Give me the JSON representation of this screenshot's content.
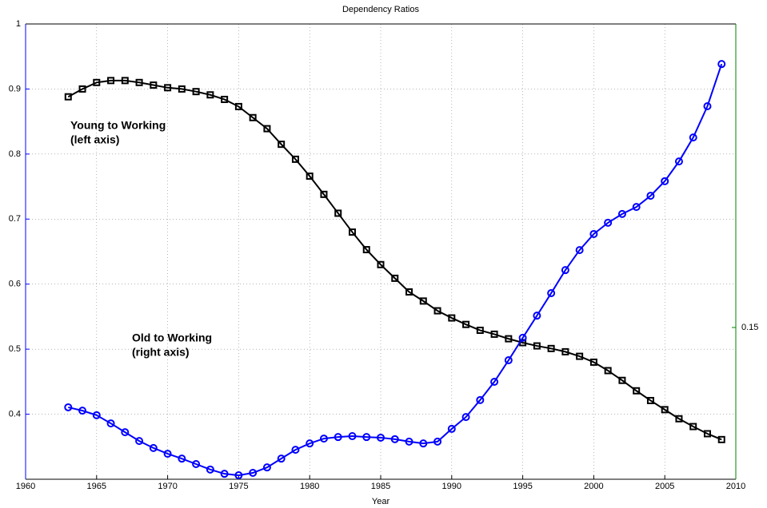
{
  "chart_data": {
    "type": "line",
    "title": "Dependency Ratios",
    "x_label": "Year",
    "x": [
      1963,
      1964,
      1965,
      1966,
      1967,
      1968,
      1969,
      1970,
      1971,
      1972,
      1973,
      1974,
      1975,
      1976,
      1977,
      1978,
      1979,
      1980,
      1981,
      1982,
      1983,
      1984,
      1985,
      1986,
      1987,
      1988,
      1989,
      1990,
      1991,
      1992,
      1993,
      1994,
      1995,
      1996,
      1997,
      1998,
      1999,
      2000,
      2001,
      2002,
      2003,
      2004,
      2005,
      2006,
      2007,
      2008,
      2009
    ],
    "series": [
      {
        "name": "Young to Working",
        "color": "#000000",
        "marker": "square",
        "axis": "y",
        "values": [
          0.888,
          0.9,
          0.91,
          0.913,
          0.913,
          0.91,
          0.906,
          0.902,
          0.9,
          0.896,
          0.891,
          0.884,
          0.873,
          0.856,
          0.839,
          0.815,
          0.792,
          0.766,
          0.738,
          0.709,
          0.68,
          0.653,
          0.63,
          0.609,
          0.588,
          0.574,
          0.559,
          0.548,
          0.538,
          0.529,
          0.523,
          0.516,
          0.51,
          0.505,
          0.501,
          0.496,
          0.489,
          0.48,
          0.467,
          0.452,
          0.436,
          0.421,
          0.407,
          0.393,
          0.381,
          0.37,
          0.361
        ]
      },
      {
        "name": "Old to Working",
        "color": "#0000ff",
        "marker": "circle",
        "axis": "y2",
        "values": [
          0.1237,
          0.1226,
          0.1211,
          0.1184,
          0.1155,
          0.1126,
          0.1103,
          0.1084,
          0.1068,
          0.105,
          0.1032,
          0.1018,
          0.1013,
          0.1021,
          0.1039,
          0.1068,
          0.1097,
          0.1118,
          0.1134,
          0.1139,
          0.1142,
          0.1139,
          0.1137,
          0.1132,
          0.1124,
          0.1118,
          0.1124,
          0.1166,
          0.1205,
          0.1261,
          0.1321,
          0.1392,
          0.1466,
          0.1539,
          0.1613,
          0.1689,
          0.1755,
          0.1808,
          0.1845,
          0.1874,
          0.1897,
          0.1934,
          0.1982,
          0.2047,
          0.2126,
          0.2229,
          0.2368
        ]
      }
    ],
    "annotations": [
      [
        "Young to Working",
        "(left axis)"
      ],
      [
        "Old to Working",
        "(right axis)"
      ]
    ],
    "xlim": [
      1960,
      2010
    ],
    "xticks": [
      1960,
      1965,
      1970,
      1975,
      1980,
      1985,
      1990,
      1995,
      2000,
      2005,
      2010
    ],
    "ylim": [
      0.3,
      1
    ],
    "yticks": [
      0.4,
      0.5,
      0.6,
      0.7,
      0.8,
      0.9,
      1
    ],
    "y2lim": [
      0.1,
      0.25
    ],
    "y2ticks": [
      0.15
    ],
    "y_axis_color": "#0000ff",
    "y2_axis_color": "#008000",
    "grid": true
  }
}
